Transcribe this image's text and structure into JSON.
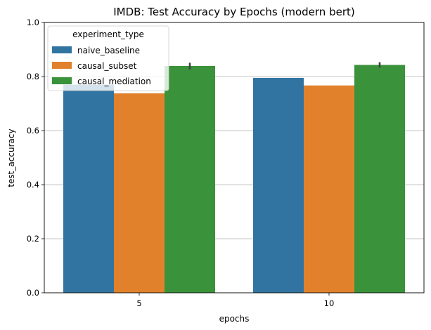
{
  "chart_data": {
    "type": "bar",
    "title": "IMDB: Test Accuracy by Epochs (modern bert)",
    "xlabel": "epochs",
    "ylabel": "test_accuracy",
    "categories": [
      "5",
      "10"
    ],
    "ylim": [
      0,
      1.0
    ],
    "yticks": [
      "0.0",
      "0.2",
      "0.4",
      "0.6",
      "0.8",
      "1.0"
    ],
    "grid": "horizontal",
    "legend": {
      "title": "experiment_type",
      "placement": "top-left"
    },
    "series": [
      {
        "name": "naive_baseline",
        "color": "#3274a1",
        "values": [
          0.77,
          0.795
        ],
        "error": [
          null,
          null
        ]
      },
      {
        "name": "causal_subset",
        "color": "#e1812c",
        "values": [
          0.738,
          0.767
        ],
        "error": [
          null,
          null
        ]
      },
      {
        "name": "causal_mediation",
        "color": "#3a923a",
        "values": [
          0.839,
          0.843
        ],
        "error": [
          [
            0.826,
            0.851
          ],
          [
            0.833,
            0.853
          ]
        ]
      }
    ]
  }
}
